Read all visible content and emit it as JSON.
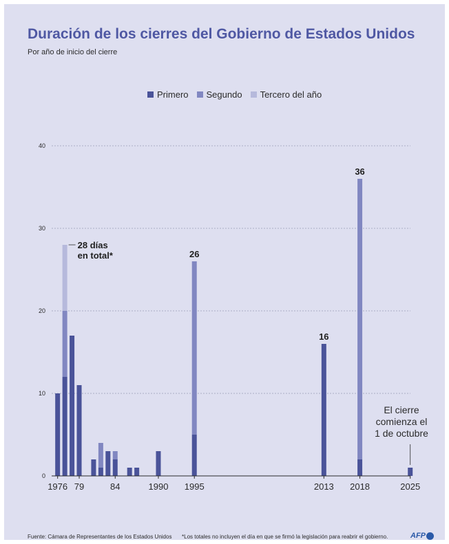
{
  "title": "Duración de los cierres del Gobierno de Estados Unidos",
  "subtitle": "Por año de inicio del cierre",
  "legend": [
    {
      "label": "Primero",
      "color": "#4a5399"
    },
    {
      "label": "Segundo",
      "color": "#8187c1"
    },
    {
      "label": "Tercero del año",
      "color": "#b6b9dc"
    }
  ],
  "footer": {
    "source": "Fuente: Cámara de Representantes de los Estados Unidos",
    "note": "*Los totales no incluyen el día en que se firmó la legislación para reabrir el gobierno.",
    "logo": "AFP"
  },
  "chart_data": {
    "type": "bar",
    "stacked": true,
    "ylim": [
      0,
      40
    ],
    "yticks": [
      0,
      10,
      20,
      30,
      40
    ],
    "xlim": [
      1975,
      2027
    ],
    "xticks": [
      "1976",
      "79",
      "84",
      "1990",
      "1995",
      "2013",
      "2018",
      "2025"
    ],
    "xtick_years": [
      1976,
      1979,
      1984,
      1990,
      1995,
      2013,
      2018,
      2025
    ],
    "grid": true,
    "series_names": [
      "Primero",
      "Segundo",
      "Tercero del año"
    ],
    "colors": [
      "#4a5399",
      "#8187c1",
      "#b6b9dc"
    ],
    "bars": [
      {
        "x": 1976.5,
        "values": [
          10
        ]
      },
      {
        "x": 1977.5,
        "values": [
          12,
          8,
          8
        ]
      },
      {
        "x": 1978.5,
        "values": [
          17
        ]
      },
      {
        "x": 1979.5,
        "values": [
          11
        ]
      },
      {
        "x": 1981.5,
        "values": [
          2
        ]
      },
      {
        "x": 1982.5,
        "values": [
          1,
          3
        ]
      },
      {
        "x": 1983.5,
        "values": [
          3
        ]
      },
      {
        "x": 1984.5,
        "values": [
          2,
          1
        ]
      },
      {
        "x": 1986.5,
        "values": [
          1
        ]
      },
      {
        "x": 1987.5,
        "values": [
          1
        ]
      },
      {
        "x": 1990.5,
        "values": [
          3
        ]
      },
      {
        "x": 1995.5,
        "values": [
          5,
          21
        ]
      },
      {
        "x": 2013.5,
        "values": [
          16
        ]
      },
      {
        "x": 2018.5,
        "values": [
          2,
          34
        ]
      },
      {
        "x": 2025.5,
        "values": [
          1
        ]
      }
    ],
    "data_labels": [
      {
        "x": 1995.5,
        "text": "26"
      },
      {
        "x": 2013.5,
        "text": "16"
      },
      {
        "x": 2018.5,
        "text": "36"
      }
    ],
    "annotations": [
      {
        "x": 1977.5,
        "y": 28,
        "lines": [
          "28 días",
          "en total*"
        ]
      },
      {
        "x": 2025.5,
        "y": 1,
        "lines": [
          "El cierre",
          "comienza el",
          "1 de octubre"
        ]
      }
    ]
  }
}
